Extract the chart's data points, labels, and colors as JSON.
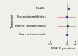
{
  "interventions": [
    "NSAIDs",
    "Macrolide antibiotics",
    "Inhaled corticosteroids",
    "Oral corticosteroids"
  ],
  "means": [
    4.5,
    0.5,
    2.0,
    0.3
  ],
  "ci_low": [
    2.5,
    -30.0,
    -28.0,
    -2.0
  ],
  "ci_high": [
    6.5,
    31.0,
    32.0,
    2.8
  ],
  "xlim": [
    -50,
    28
  ],
  "xticks": [
    -50,
    0,
    25
  ],
  "xtick_labels": [
    "-50",
    "0",
    "25"
  ],
  "xlabel": "FEV1 % predicted",
  "ylabel": "Treatment",
  "vline_x": 0,
  "marker_color": "#2b4f9e",
  "line_color": "#d08080",
  "vline_color": "#cc6666",
  "bg_color": "#f0f0eb",
  "plot_bg": "#f0f0eb",
  "label_fontsize": 2.8,
  "tick_fontsize": 2.5,
  "ylabel_fontsize": 2.8
}
